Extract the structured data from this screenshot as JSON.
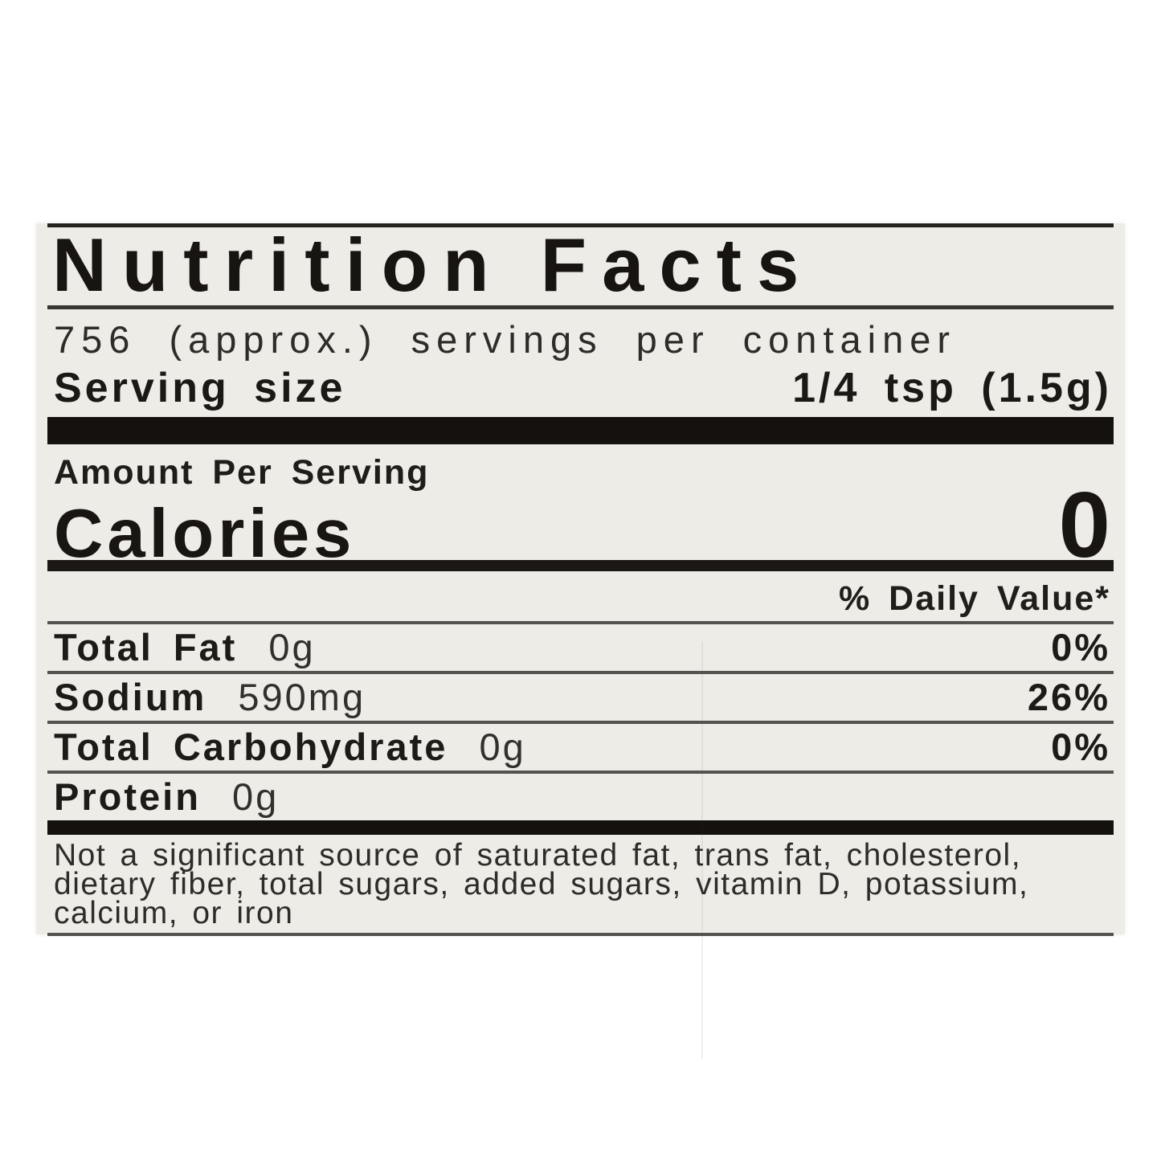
{
  "label": {
    "title": "Nutrition Facts",
    "servings_per_container": "756 (approx.) servings per container",
    "serving_size": {
      "label": "Serving size",
      "value": "1/4 tsp (1.5g)"
    },
    "amount_per_serving": "Amount Per Serving",
    "calories": {
      "label": "Calories",
      "value": "0"
    },
    "daily_value_header": "% Daily Value*",
    "nutrients": [
      {
        "name": "Total Fat",
        "amount": "0g",
        "dv": "0%"
      },
      {
        "name": "Sodium",
        "amount": "590mg",
        "dv": "26%"
      },
      {
        "name": "Total Carbohydrate",
        "amount": "0g",
        "dv": "0%"
      },
      {
        "name": "Protein",
        "amount": "0g",
        "dv": ""
      }
    ],
    "footnote_lines": [
      "Not a significant source of saturated fat, trans fat, cholesterol,",
      "dietary fiber, total sugars, added sugars, vitamin D, potassium,",
      "calcium, or iron"
    ],
    "colors": {
      "page_bg": "#ffffff",
      "label_bg": "#edece7",
      "bar": "#14110e",
      "rule": "#55534f",
      "text": "#1d1b18"
    }
  }
}
